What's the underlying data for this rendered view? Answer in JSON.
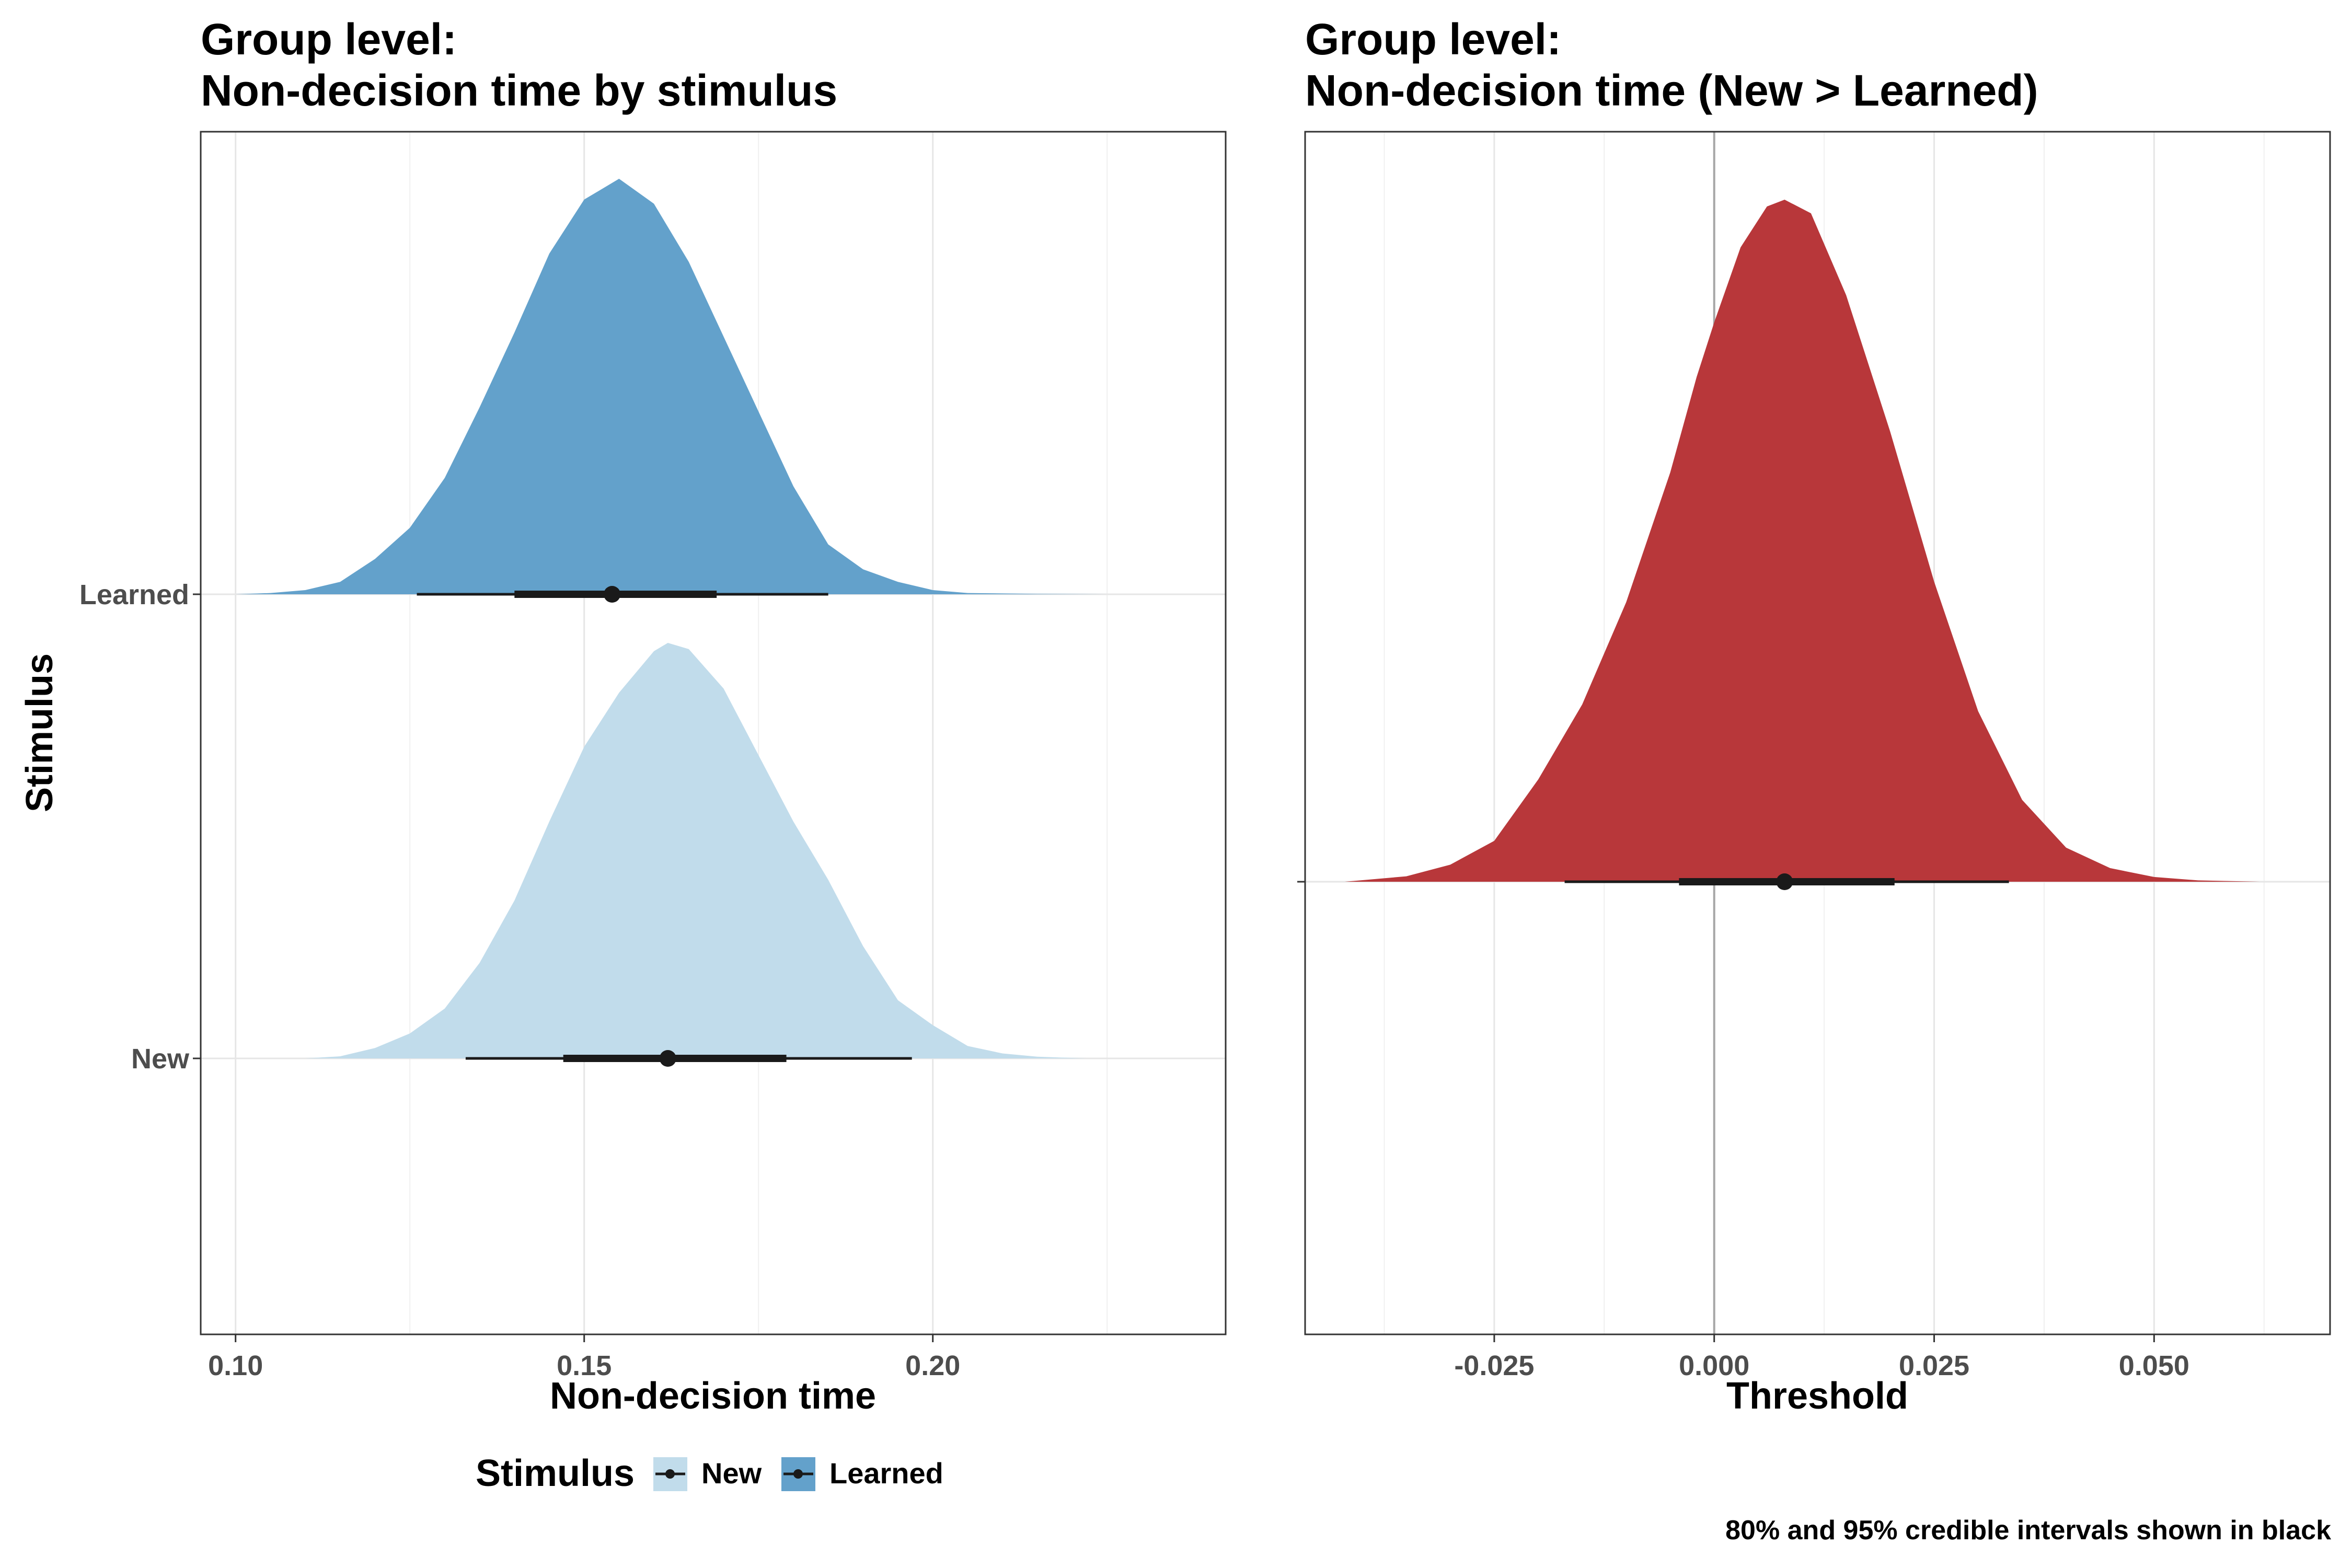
{
  "chart_data": [
    {
      "type": "density",
      "title": [
        "Group level:",
        "Non-decision time by stimulus"
      ],
      "xlabel": "Non-decision time",
      "ylabel": "Stimulus",
      "xlim": [
        0.095,
        0.242
      ],
      "x_ticks": [
        0.1,
        0.15,
        0.2
      ],
      "x_tick_labels": [
        "0.10",
        "0.15",
        "0.20"
      ],
      "categories": [
        "New",
        "Learned"
      ],
      "grid": true,
      "legend_position": "bottom",
      "series": [
        {
          "name": "New",
          "color": "#c1dceb",
          "median": 0.162,
          "ci80": [
            0.147,
            0.179
          ],
          "ci95": [
            0.133,
            0.197
          ],
          "density": [
            [
              0.11,
              0.0
            ],
            [
              0.115,
              0.005
            ],
            [
              0.12,
              0.025
            ],
            [
              0.125,
              0.06
            ],
            [
              0.13,
              0.12
            ],
            [
              0.135,
              0.23
            ],
            [
              0.14,
              0.38
            ],
            [
              0.145,
              0.57
            ],
            [
              0.15,
              0.75
            ],
            [
              0.155,
              0.88
            ],
            [
              0.16,
              0.98
            ],
            [
              0.162,
              1.0
            ],
            [
              0.165,
              0.985
            ],
            [
              0.17,
              0.89
            ],
            [
              0.175,
              0.73
            ],
            [
              0.18,
              0.57
            ],
            [
              0.185,
              0.43
            ],
            [
              0.19,
              0.27
            ],
            [
              0.195,
              0.14
            ],
            [
              0.2,
              0.08
            ],
            [
              0.205,
              0.03
            ],
            [
              0.21,
              0.012
            ],
            [
              0.215,
              0.004
            ],
            [
              0.222,
              0.0
            ]
          ]
        },
        {
          "name": "Learned",
          "color": "#63a1cb",
          "median": 0.154,
          "ci80": [
            0.14,
            0.169
          ],
          "ci95": [
            0.126,
            0.185
          ],
          "density": [
            [
              0.1,
              0.0
            ],
            [
              0.105,
              0.003
            ],
            [
              0.11,
              0.01
            ],
            [
              0.115,
              0.03
            ],
            [
              0.12,
              0.085
            ],
            [
              0.125,
              0.16
            ],
            [
              0.13,
              0.28
            ],
            [
              0.135,
              0.45
            ],
            [
              0.14,
              0.63
            ],
            [
              0.145,
              0.82
            ],
            [
              0.15,
              0.95
            ],
            [
              0.155,
              1.0
            ],
            [
              0.16,
              0.94
            ],
            [
              0.165,
              0.8
            ],
            [
              0.17,
              0.62
            ],
            [
              0.175,
              0.44
            ],
            [
              0.18,
              0.26
            ],
            [
              0.185,
              0.12
            ],
            [
              0.19,
              0.06
            ],
            [
              0.195,
              0.03
            ],
            [
              0.2,
              0.01
            ],
            [
              0.205,
              0.003
            ],
            [
              0.215,
              0.001
            ],
            [
              0.225,
              0.0
            ]
          ]
        }
      ]
    },
    {
      "type": "density",
      "title": [
        "Group level:",
        "Non-decision time (New > Learned)"
      ],
      "xlabel": "Threshold",
      "xlim": [
        -0.0465,
        0.07
      ],
      "x_ticks": [
        -0.025,
        0.0,
        0.025,
        0.05
      ],
      "x_tick_labels": [
        "-0.025",
        "0.000",
        "0.025",
        "0.050"
      ],
      "zero_line": 0,
      "grid": true,
      "series": [
        {
          "color": "#b8373a",
          "median": 0.008,
          "ci80": [
            -0.004,
            0.0205
          ],
          "ci95": [
            -0.017,
            0.0335
          ],
          "density": [
            [
              -0.042,
              0.0
            ],
            [
              -0.035,
              0.008
            ],
            [
              -0.03,
              0.025
            ],
            [
              -0.025,
              0.06
            ],
            [
              -0.02,
              0.15
            ],
            [
              -0.015,
              0.26
            ],
            [
              -0.01,
              0.41
            ],
            [
              -0.005,
              0.6
            ],
            [
              -0.002,
              0.74
            ],
            [
              0.0,
              0.82
            ],
            [
              0.003,
              0.93
            ],
            [
              0.006,
              0.99
            ],
            [
              0.008,
              1.0
            ],
            [
              0.011,
              0.98
            ],
            [
              0.015,
              0.86
            ],
            [
              0.02,
              0.66
            ],
            [
              0.025,
              0.44
            ],
            [
              0.03,
              0.25
            ],
            [
              0.035,
              0.12
            ],
            [
              0.04,
              0.05
            ],
            [
              0.045,
              0.02
            ],
            [
              0.05,
              0.007
            ],
            [
              0.055,
              0.002
            ],
            [
              0.062,
              0.0
            ]
          ]
        }
      ]
    }
  ],
  "legend": {
    "title": "Stimulus",
    "items": [
      {
        "label": "New",
        "color": "#c1dceb"
      },
      {
        "label": "Learned",
        "color": "#63a1cb"
      }
    ]
  },
  "caption": "80% and 95% credible intervals shown in black"
}
